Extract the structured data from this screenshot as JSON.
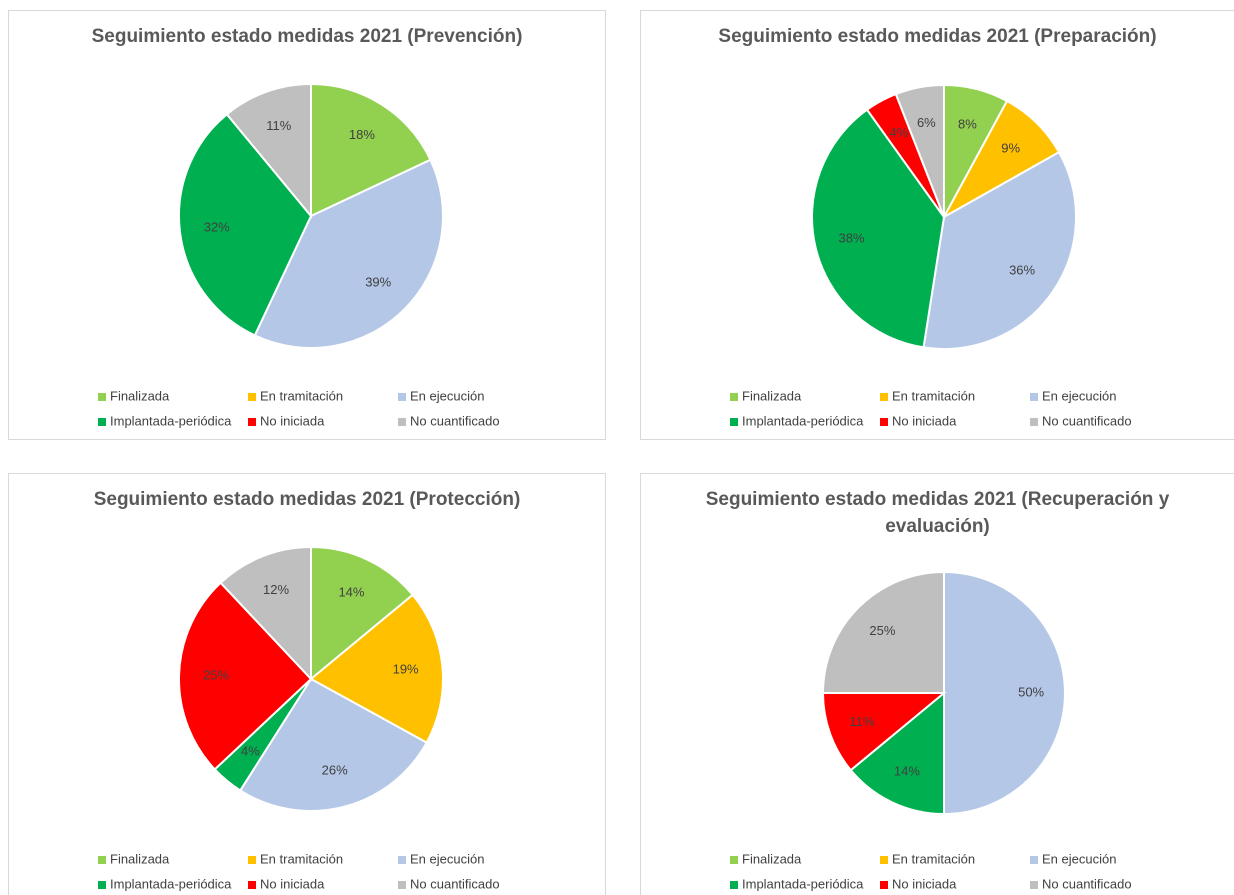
{
  "chart_data": [
    {
      "type": "pie",
      "title": "Seguimiento estado medidas 2021 (Prevención)",
      "categories": [
        "Finalizada",
        "En tramitación",
        "En ejecución",
        "Implantada-periódica",
        "No iniciada",
        "No cuantificado"
      ],
      "values": [
        18,
        null,
        39,
        32,
        null,
        11
      ],
      "value_labels": [
        "18%",
        null,
        "39%",
        "32%",
        null,
        "11%"
      ],
      "colors": [
        "#92d050",
        "#ffc000",
        "#b4c7e7",
        "#00b050",
        "#ff0000",
        "#bfbfbf"
      ]
    },
    {
      "type": "pie",
      "title": "Seguimiento estado medidas 2021 (Preparación)",
      "categories": [
        "Finalizada",
        "En tramitación",
        "En ejecución",
        "Implantada-periódica",
        "No iniciada",
        "No cuantificado"
      ],
      "values": [
        8,
        9,
        36,
        38,
        4,
        6
      ],
      "value_labels": [
        "8%",
        "9%",
        "36%",
        "38%",
        "4%",
        "6%"
      ],
      "colors": [
        "#92d050",
        "#ffc000",
        "#b4c7e7",
        "#00b050",
        "#ff0000",
        "#bfbfbf"
      ]
    },
    {
      "type": "pie",
      "title": "Seguimiento estado medidas 2021 (Protección)",
      "categories": [
        "Finalizada",
        "En tramitación",
        "En ejecución",
        "Implantada-periódica",
        "No iniciada",
        "No cuantificado"
      ],
      "values": [
        14,
        19,
        26,
        4,
        25,
        12
      ],
      "value_labels": [
        "14%",
        "19%",
        "26%",
        "4%",
        "25%",
        "12%"
      ],
      "colors": [
        "#92d050",
        "#ffc000",
        "#b4c7e7",
        "#00b050",
        "#ff0000",
        "#bfbfbf"
      ]
    },
    {
      "type": "pie",
      "title": "Seguimiento estado medidas 2021 (Recuperación y evaluación)",
      "categories": [
        "Finalizada",
        "En tramitación",
        "En ejecución",
        "Implantada-periódica",
        "No iniciada",
        "No cuantificado"
      ],
      "values": [
        null,
        null,
        50,
        14,
        11,
        25
      ],
      "value_labels": [
        null,
        null,
        "50%",
        "14%",
        "11%",
        "25%"
      ],
      "colors": [
        "#92d050",
        "#ffc000",
        "#b4c7e7",
        "#00b050",
        "#ff0000",
        "#bfbfbf"
      ]
    }
  ]
}
